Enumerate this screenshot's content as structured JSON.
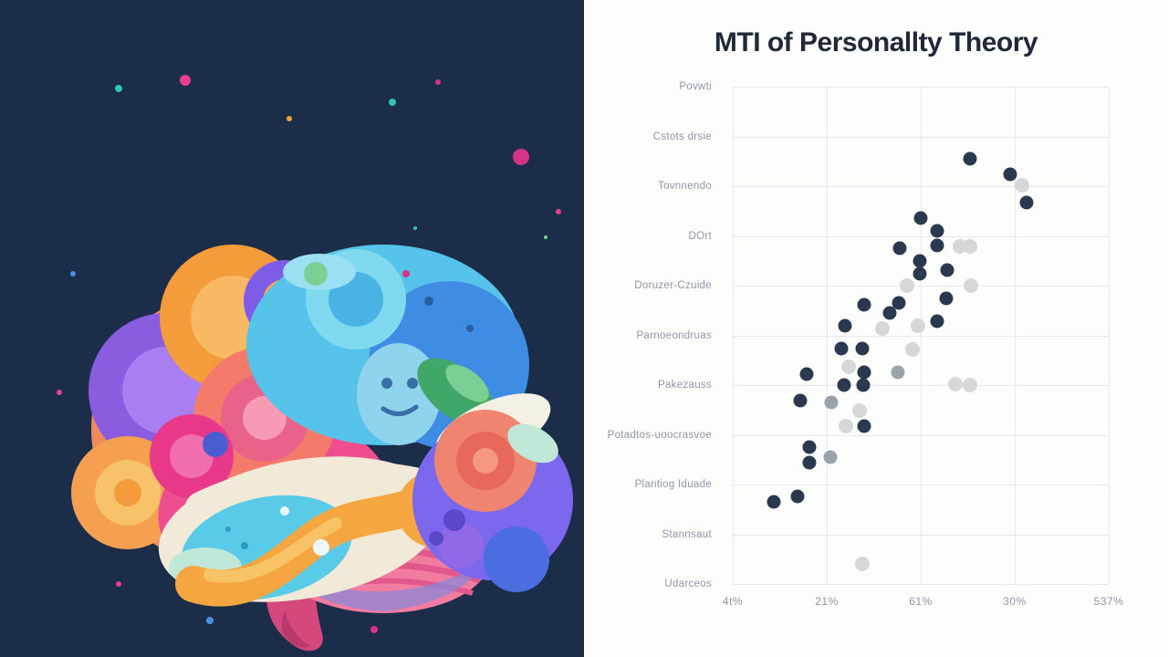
{
  "left_panel": {
    "background": "#1b2d49",
    "illustration": "colorful-abstract-swirl-brain"
  },
  "chart_data": {
    "type": "scatter",
    "title": "MTI of Personallty Theory",
    "y_categories": [
      "Povwti",
      "Cstots drsie",
      "Tovnnendo",
      "DOrt",
      "Doruzer-Czuide",
      "Parnoeondruas",
      "Pakezauss",
      "Potadtos-uoocrasvoe",
      "Plantiog Iduade",
      "Stannsaut",
      "Udarceos"
    ],
    "x_ticks": [
      "4t%",
      "21%",
      "61%",
      "30%",
      "537%"
    ],
    "grid": true,
    "legend": false,
    "point_units": "percent-of-plot-area",
    "series": [
      {
        "name": "dark-navy-dots",
        "color": "#2a3850",
        "size": 15,
        "points": [
          [
            63.1,
            14.5
          ],
          [
            73.8,
            17.6
          ],
          [
            78.2,
            23.3
          ],
          [
            50.0,
            26.4
          ],
          [
            54.4,
            29.0
          ],
          [
            54.4,
            31.9
          ],
          [
            44.4,
            32.5
          ],
          [
            49.8,
            35.0
          ],
          [
            57.0,
            36.9
          ],
          [
            49.8,
            37.6
          ],
          [
            56.8,
            42.6
          ],
          [
            44.2,
            43.5
          ],
          [
            35.0,
            43.9
          ],
          [
            41.7,
            45.5
          ],
          [
            54.4,
            47.2
          ],
          [
            29.9,
            48.1
          ],
          [
            28.9,
            52.7
          ],
          [
            34.5,
            52.7
          ],
          [
            35.0,
            57.4
          ],
          [
            19.7,
            57.8
          ],
          [
            29.6,
            60.0
          ],
          [
            34.7,
            60.0
          ],
          [
            18.0,
            63.1
          ],
          [
            35.0,
            68.3
          ],
          [
            20.4,
            72.5
          ],
          [
            20.4,
            75.6
          ],
          [
            17.2,
            82.4
          ],
          [
            10.9,
            83.5
          ]
        ]
      },
      {
        "name": "light-gray-dots",
        "color": "#d6d7d9",
        "size": 16,
        "points": [
          [
            76.9,
            19.8
          ],
          [
            60.4,
            32.1
          ],
          [
            63.1,
            32.1
          ],
          [
            46.4,
            40.0
          ],
          [
            63.3,
            40.0
          ],
          [
            49.3,
            48.1
          ],
          [
            39.8,
            48.6
          ],
          [
            47.8,
            52.8
          ],
          [
            30.8,
            56.3
          ],
          [
            59.2,
            59.8
          ],
          [
            63.1,
            60.0
          ],
          [
            33.7,
            65.1
          ],
          [
            30.1,
            68.3
          ],
          [
            34.5,
            96.0
          ]
        ]
      },
      {
        "name": "mid-gray-dots",
        "color": "#9aa2ac",
        "size": 15,
        "points": [
          [
            43.9,
            57.4
          ],
          [
            26.2,
            63.5
          ],
          [
            26.0,
            74.5
          ]
        ]
      }
    ]
  },
  "palette": {
    "panel_bg": "#1b2d49",
    "chart_bg": "#fdfdfc",
    "title": "#20293a",
    "axis_label": "#8d96a5",
    "grid": "#e5e7ea",
    "dot_navy": "#2a3850",
    "dot_light": "#d6d7d9",
    "dot_mid": "#9aa2ac",
    "brain": [
      "#f08a5e",
      "#ee4d8e",
      "#8a5ce0",
      "#f49b3c",
      "#55c3ea",
      "#2f7ce0",
      "#7b68ee",
      "#3fa768",
      "#f2ead9",
      "#f27ba0",
      "#d5487e",
      "#59cbe8"
    ]
  }
}
